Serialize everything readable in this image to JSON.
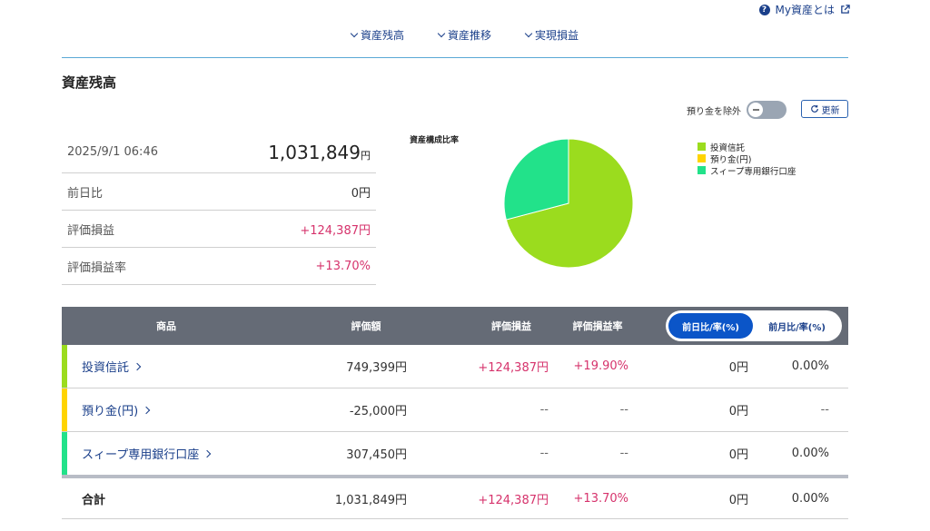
{
  "help_link": {
    "label": "My資産とは"
  },
  "nav": {
    "items": [
      {
        "label": "資産残高"
      },
      {
        "label": "資産推移"
      },
      {
        "label": "実現損益"
      }
    ]
  },
  "section_title": "資産残高",
  "controls": {
    "toggle_label": "預り金を除外",
    "refresh_label": "更新"
  },
  "summary": {
    "datetime": "2025/9/1 06:46",
    "total": "1,031,849",
    "unit": "円",
    "rows": [
      {
        "label": "前日比",
        "value": "0円"
      },
      {
        "label": "評価損益",
        "value": "+124,387円"
      },
      {
        "label": "評価損益率",
        "value": "+13.70%"
      }
    ]
  },
  "chart_data": {
    "type": "pie",
    "title": "資産構成比率",
    "legend_position": "right",
    "categories": [
      "投資信託",
      "預り金(円)",
      "スィープ専用銀行口座"
    ],
    "values": [
      749399,
      0,
      307450
    ],
    "colors": [
      "#9bdc1e",
      "#ffd400",
      "#22e28a"
    ]
  },
  "table": {
    "headers": {
      "product": "商品",
      "valuation": "評価額",
      "pl": "評価損益",
      "pl_rate": "評価損益率"
    },
    "segment": {
      "options": [
        "前日比/率(%)",
        "前月比/率(%)"
      ],
      "active": 0
    },
    "rows": [
      {
        "name": "投資信託",
        "color": "#9bdc1e",
        "valuation": "749,399円",
        "pl": "+124,387円",
        "pl_rate": "+19.90%",
        "diff": "0円",
        "diff_rate": "0.00%"
      },
      {
        "name": "預り金(円)",
        "color": "#ffd400",
        "valuation": "-25,000円",
        "pl": "--",
        "pl_rate": "--",
        "diff": "0円",
        "diff_rate": "--"
      },
      {
        "name": "スィープ専用銀行口座",
        "color": "#22e28a",
        "valuation": "307,450円",
        "pl": "--",
        "pl_rate": "--",
        "diff": "0円",
        "diff_rate": "0.00%"
      }
    ],
    "total": {
      "label": "合計",
      "valuation": "1,031,849円",
      "pl": "+124,387円",
      "pl_rate": "+13.70%",
      "diff": "0円",
      "diff_rate": "0.00%"
    }
  }
}
